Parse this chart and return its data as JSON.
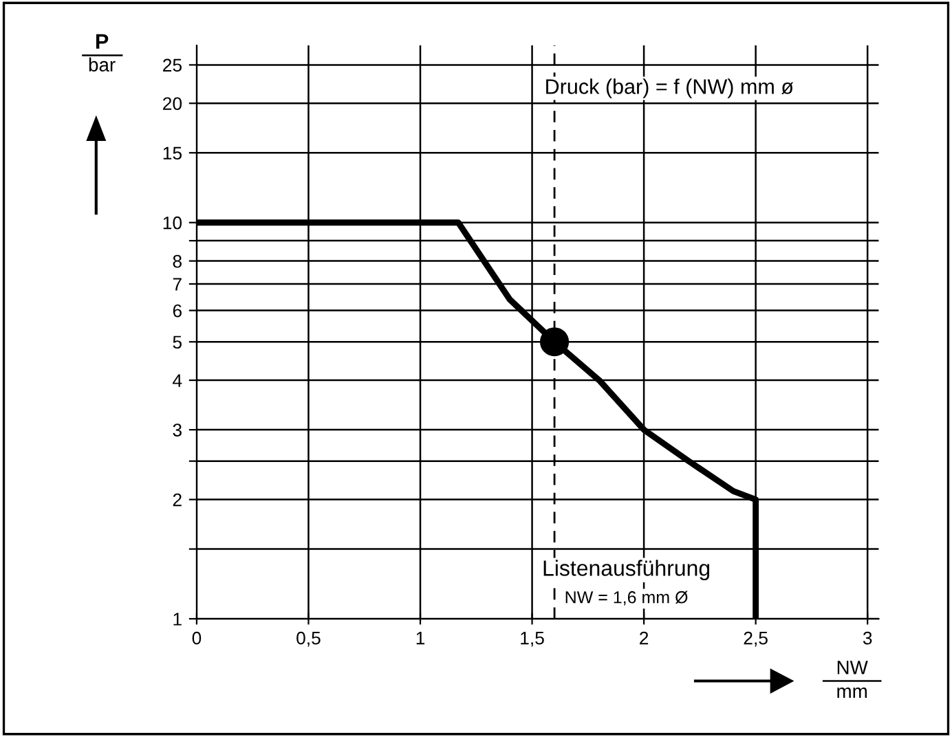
{
  "chart_data": {
    "type": "line",
    "xlabel": "NW\nmm",
    "ylabel": "P\nbar",
    "annotations": [
      "Druck (bar) = f (NW) mm ø",
      "Listenausführung",
      "NW = 1,6 mm Ø"
    ],
    "x": [
      0,
      1.17,
      1.4,
      1.6,
      1.8,
      2,
      2.2,
      2.4,
      2.5,
      2.5
    ],
    "series": [
      {
        "color": "#000000",
        "values": [
          10,
          10,
          6.4,
          5,
          4,
          3,
          2.5,
          2.1,
          2,
          1
        ],
        "marker": "none"
      },
      {
        "type": "scatter",
        "color": "#000000",
        "x": [
          1.6
        ],
        "values": [
          5
        ],
        "marker": "circle"
      }
    ],
    "ref_lines": [
      {
        "axis": "x",
        "value": 1.6,
        "line_style": "dashed",
        "color": "#000000"
      }
    ],
    "log": "y",
    "xlim": [
      0,
      3.05
    ],
    "ylim": [
      1,
      28
    ],
    "xticks": [
      {
        "value": 0,
        "label": "0"
      },
      {
        "value": 0.5,
        "label": "0,5"
      },
      {
        "value": 1,
        "label": "1"
      },
      {
        "value": 1.5,
        "label": "1,5"
      },
      {
        "value": 2,
        "label": "2"
      },
      {
        "value": 2.5,
        "label": "2,5"
      },
      {
        "value": 3,
        "label": "3"
      }
    ],
    "yticks": [
      1,
      {
        "value": 1.5,
        "label": null
      },
      2,
      {
        "value": 2.5,
        "label": null
      },
      3,
      4,
      5,
      6,
      7,
      8,
      {
        "value": 9,
        "label": null
      },
      10,
      15,
      20,
      25
    ],
    "grid": true
  }
}
